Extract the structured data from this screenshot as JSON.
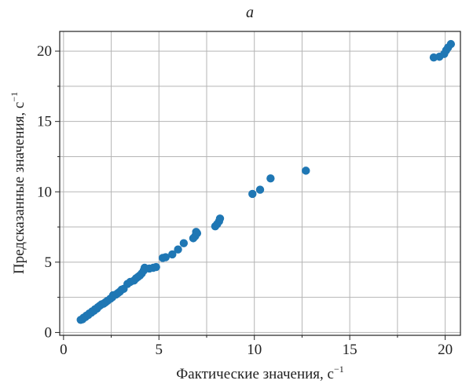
{
  "chart_data": {
    "type": "scatter",
    "panel_label": "a",
    "xlabel": "Фактические значения, с",
    "xlabel_sup": "−1",
    "ylabel": "Предсказанные значения, с",
    "ylabel_sup": "−1",
    "xlim": [
      -0.2,
      20.8
    ],
    "ylim": [
      -0.2,
      21.4
    ],
    "xticks": [
      0,
      5,
      10,
      15,
      20
    ],
    "yticks": [
      0,
      5,
      10,
      15,
      20
    ],
    "xticks_minor": [
      2.5,
      7.5,
      12.5,
      17.5
    ],
    "yticks_minor": [
      2.5,
      7.5,
      12.5,
      17.5
    ],
    "grid": true,
    "color": "#1f77b4",
    "points": [
      [
        0.9,
        0.9
      ],
      [
        1.0,
        0.95
      ],
      [
        1.05,
        1.05
      ],
      [
        1.15,
        1.1
      ],
      [
        1.2,
        1.2
      ],
      [
        1.3,
        1.25
      ],
      [
        1.35,
        1.35
      ],
      [
        1.45,
        1.4
      ],
      [
        1.5,
        1.5
      ],
      [
        1.6,
        1.55
      ],
      [
        1.65,
        1.65
      ],
      [
        1.75,
        1.7
      ],
      [
        1.8,
        1.8
      ],
      [
        1.9,
        1.9
      ],
      [
        2.0,
        2.0
      ],
      [
        2.1,
        2.05
      ],
      [
        2.2,
        2.15
      ],
      [
        2.3,
        2.25
      ],
      [
        2.45,
        2.4
      ],
      [
        2.55,
        2.5
      ],
      [
        2.6,
        2.65
      ],
      [
        2.75,
        2.7
      ],
      [
        2.85,
        2.8
      ],
      [
        2.95,
        2.9
      ],
      [
        3.05,
        3.05
      ],
      [
        3.15,
        3.1
      ],
      [
        3.35,
        3.45
      ],
      [
        3.5,
        3.6
      ],
      [
        3.7,
        3.7
      ],
      [
        3.8,
        3.85
      ],
      [
        3.9,
        3.95
      ],
      [
        4.0,
        4.05
      ],
      [
        4.1,
        4.2
      ],
      [
        4.2,
        4.4
      ],
      [
        4.25,
        4.6
      ],
      [
        4.5,
        4.55
      ],
      [
        4.7,
        4.6
      ],
      [
        4.85,
        4.65
      ],
      [
        5.2,
        5.3
      ],
      [
        5.35,
        5.35
      ],
      [
        5.7,
        5.55
      ],
      [
        6.0,
        5.9
      ],
      [
        6.3,
        6.35
      ],
      [
        6.8,
        6.7
      ],
      [
        6.9,
        6.85
      ],
      [
        7.0,
        7.05
      ],
      [
        6.95,
        7.15
      ],
      [
        7.95,
        7.55
      ],
      [
        8.05,
        7.7
      ],
      [
        8.15,
        7.9
      ],
      [
        8.2,
        8.1
      ],
      [
        9.9,
        9.85
      ],
      [
        10.3,
        10.15
      ],
      [
        10.85,
        10.95
      ],
      [
        12.7,
        11.5
      ],
      [
        19.4,
        19.55
      ],
      [
        19.7,
        19.6
      ],
      [
        19.95,
        19.8
      ],
      [
        20.05,
        20.05
      ],
      [
        20.15,
        20.25
      ],
      [
        20.3,
        20.5
      ]
    ]
  }
}
